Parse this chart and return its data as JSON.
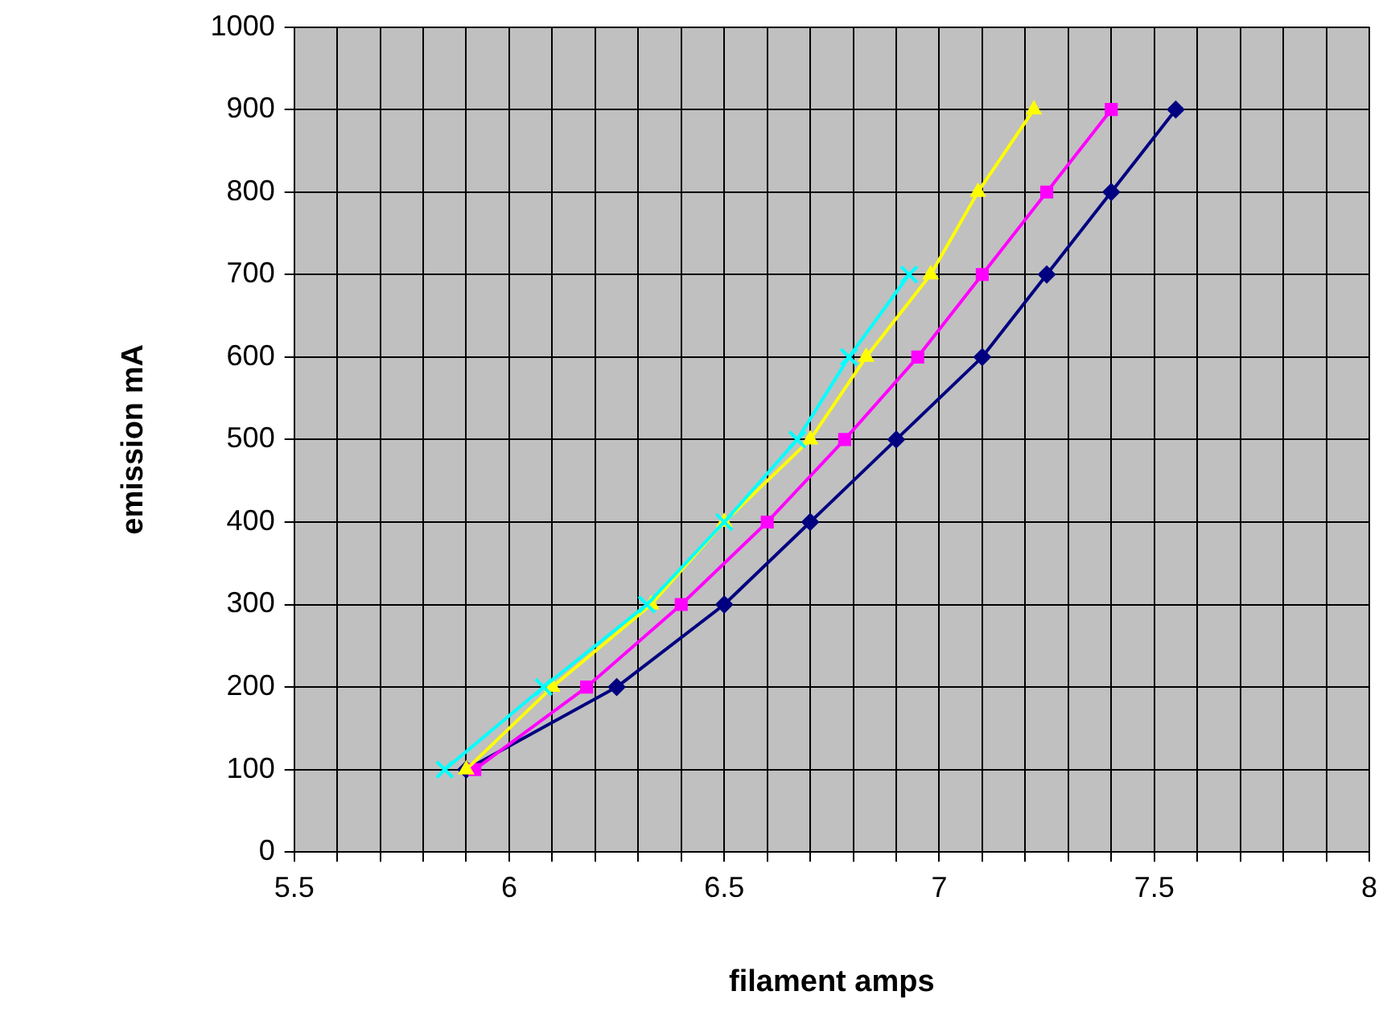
{
  "chart_data": {
    "type": "line",
    "xlabel": "filament amps",
    "ylabel": "emission mA",
    "xlim": [
      5.5,
      8
    ],
    "xticks": [
      5.5,
      {
        "value": 5.6,
        "label": null
      },
      {
        "value": 5.7,
        "label": null
      },
      {
        "value": 5.8,
        "label": null
      },
      {
        "value": 5.9,
        "label": null
      },
      6,
      {
        "value": 6.1,
        "label": null
      },
      {
        "value": 6.2,
        "label": null
      },
      {
        "value": 6.3,
        "label": null
      },
      {
        "value": 6.4,
        "label": null
      },
      6.5,
      {
        "value": 6.6,
        "label": null
      },
      {
        "value": 6.7,
        "label": null
      },
      {
        "value": 6.8,
        "label": null
      },
      {
        "value": 6.9,
        "label": null
      },
      7,
      {
        "value": 7.1,
        "label": null
      },
      {
        "value": 7.2,
        "label": null
      },
      {
        "value": 7.3,
        "label": null
      },
      {
        "value": 7.4,
        "label": null
      },
      7.5,
      {
        "value": 7.6,
        "label": null
      },
      {
        "value": 7.7,
        "label": null
      },
      {
        "value": 7.8,
        "label": null
      },
      {
        "value": 7.9,
        "label": null
      },
      8
    ],
    "ylim": [
      0,
      1000
    ],
    "yticks": [
      0,
      100,
      200,
      300,
      400,
      500,
      600,
      700,
      800,
      900,
      1000
    ],
    "grid": true,
    "legend": false,
    "line_style": "solid",
    "series": [
      {
        "color": "#000080",
        "marker": "diamond",
        "x": [
          5.9,
          6.25,
          6.5,
          6.7,
          6.9,
          7.1,
          7.25,
          7.4,
          7.55
        ],
        "values": [
          100,
          200,
          300,
          400,
          500,
          600,
          700,
          800,
          900
        ]
      },
      {
        "color": "#ff00ff",
        "marker": "square",
        "x": [
          5.92,
          6.18,
          6.4,
          6.6,
          6.78,
          6.95,
          7.1,
          7.25,
          7.4
        ],
        "values": [
          100,
          200,
          300,
          400,
          500,
          600,
          700,
          800,
          900
        ]
      },
      {
        "color": "#ffff00",
        "marker": "triangle",
        "x": [
          5.9,
          6.1,
          6.33,
          6.5,
          6.7,
          6.83,
          6.98,
          7.09,
          7.22
        ],
        "values": [
          100,
          200,
          300,
          400,
          500,
          600,
          700,
          800,
          900
        ]
      },
      {
        "color": "#00ffff",
        "marker": "cross",
        "x": [
          5.85,
          6.08,
          6.32,
          6.5,
          6.67,
          6.79,
          6.93
        ],
        "values": [
          100,
          200,
          300,
          400,
          500,
          600,
          700
        ]
      }
    ]
  }
}
